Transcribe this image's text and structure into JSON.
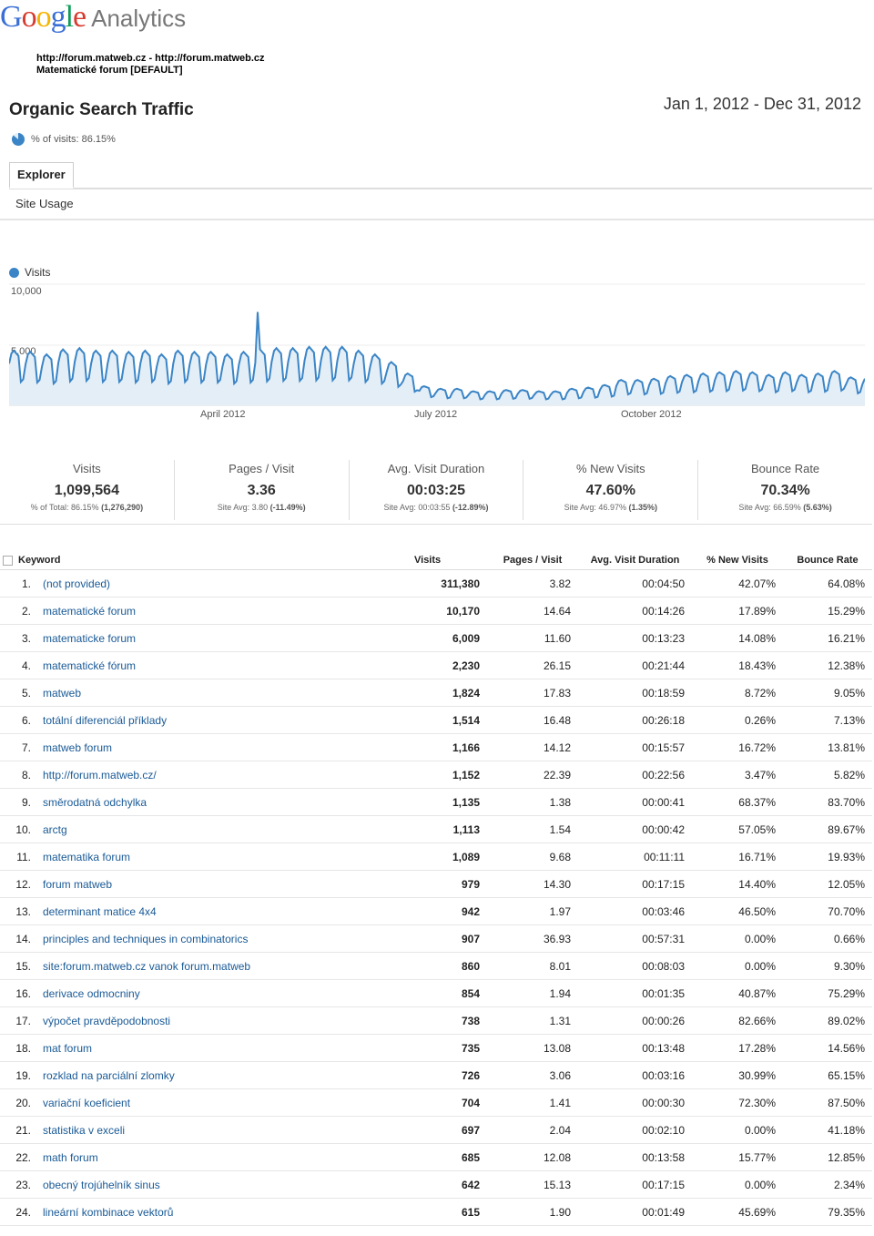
{
  "app": {
    "brand_google": "Google",
    "brand_analytics": "Analytics"
  },
  "profile": {
    "site": "http://forum.matweb.cz - http://forum.matweb.cz",
    "name": "Matematické forum [DEFAULT]"
  },
  "report": {
    "title": "Organic Search Traffic",
    "date_range": "Jan 1, 2012 - Dec 31, 2012",
    "pct_visits": "% of visits: 86.15%",
    "pct_visits_fraction": 0.8615
  },
  "tabs": {
    "explorer": "Explorer",
    "site_usage": "Site Usage"
  },
  "chart": {
    "legend": "Visits",
    "y_ticks": [
      "10,000",
      "5,000"
    ],
    "x_labels": [
      "April 2012",
      "July 2012",
      "October 2012"
    ],
    "accent": "#3b85c6",
    "fill": "#e3eef7"
  },
  "chart_data": {
    "type": "area",
    "ylim": [
      0,
      10000
    ],
    "x": [
      "2012-01-01",
      "2012-12-31"
    ],
    "series": [
      {
        "name": "Visits",
        "weekly_profile": [
          0.8,
          1.0,
          1.05,
          1.0,
          0.95,
          0.45,
          0.5
        ],
        "base_levels_by_week": [
          4300,
          4200,
          4000,
          4400,
          4500,
          4300,
          4300,
          4200,
          4300,
          4000,
          4300,
          4200,
          4200,
          4000,
          4200,
          4400,
          4500,
          4500,
          4600,
          4600,
          4600,
          4300,
          4000,
          3400,
          2500,
          1500,
          1300,
          1300,
          1100,
          1100,
          1200,
          1200,
          1100,
          1100,
          1300,
          1400,
          1600,
          2000,
          2000,
          2100,
          2300,
          2400,
          2500,
          2600,
          2700,
          2600,
          2400,
          2600,
          2400,
          2500,
          2700,
          2200
        ],
        "peak": {
          "date": "2012-04-16",
          "value": 7700
        }
      }
    ]
  },
  "metrics": [
    {
      "title": "Visits",
      "value": "1,099,564",
      "sub_label": "% of Total: 86.15%",
      "sub_value": "(1,276,290)"
    },
    {
      "title": "Pages / Visit",
      "value": "3.36",
      "sub_label": "Site Avg: 3.80",
      "sub_value": "(-11.49%)"
    },
    {
      "title": "Avg. Visit Duration",
      "value": "00:03:25",
      "sub_label": "Site Avg: 00:03:55",
      "sub_value": "(-12.89%)"
    },
    {
      "title": "% New Visits",
      "value": "47.60%",
      "sub_label": "Site Avg: 46.97%",
      "sub_value": "(1.35%)"
    },
    {
      "title": "Bounce Rate",
      "value": "70.34%",
      "sub_label": "Site Avg: 66.59%",
      "sub_value": "(5.63%)"
    }
  ],
  "table": {
    "headers": [
      "Keyword",
      "Visits",
      "Pages / Visit",
      "Avg. Visit Duration",
      "% New Visits",
      "Bounce Rate"
    ],
    "rows": [
      [
        "1.",
        "(not provided)",
        "311,380",
        "3.82",
        "00:04:50",
        "42.07%",
        "64.08%"
      ],
      [
        "2.",
        "matematické forum",
        "10,170",
        "14.64",
        "00:14:26",
        "17.89%",
        "15.29%"
      ],
      [
        "3.",
        "matematicke forum",
        "6,009",
        "11.60",
        "00:13:23",
        "14.08%",
        "16.21%"
      ],
      [
        "4.",
        "matematické fórum",
        "2,230",
        "26.15",
        "00:21:44",
        "18.43%",
        "12.38%"
      ],
      [
        "5.",
        "matweb",
        "1,824",
        "17.83",
        "00:18:59",
        "8.72%",
        "9.05%"
      ],
      [
        "6.",
        "totální diferenciál příklady",
        "1,514",
        "16.48",
        "00:26:18",
        "0.26%",
        "7.13%"
      ],
      [
        "7.",
        "matweb forum",
        "1,166",
        "14.12",
        "00:15:57",
        "16.72%",
        "13.81%"
      ],
      [
        "8.",
        "http://forum.matweb.cz/",
        "1,152",
        "22.39",
        "00:22:56",
        "3.47%",
        "5.82%"
      ],
      [
        "9.",
        "směrodatná odchylka",
        "1,135",
        "1.38",
        "00:00:41",
        "68.37%",
        "83.70%"
      ],
      [
        "10.",
        "arctg",
        "1,113",
        "1.54",
        "00:00:42",
        "57.05%",
        "89.67%"
      ],
      [
        "11.",
        "matematika forum",
        "1,089",
        "9.68",
        "00:11:11",
        "16.71%",
        "19.93%"
      ],
      [
        "12.",
        "forum matweb",
        "979",
        "14.30",
        "00:17:15",
        "14.40%",
        "12.05%"
      ],
      [
        "13.",
        "determinant matice 4x4",
        "942",
        "1.97",
        "00:03:46",
        "46.50%",
        "70.70%"
      ],
      [
        "14.",
        "principles and techniques in combinatorics",
        "907",
        "36.93",
        "00:57:31",
        "0.00%",
        "0.66%"
      ],
      [
        "15.",
        "site:forum.matweb.cz vanok forum.matweb",
        "860",
        "8.01",
        "00:08:03",
        "0.00%",
        "9.30%"
      ],
      [
        "16.",
        "derivace odmocniny",
        "854",
        "1.94",
        "00:01:35",
        "40.87%",
        "75.29%"
      ],
      [
        "17.",
        "výpočet pravděpodobnosti",
        "738",
        "1.31",
        "00:00:26",
        "82.66%",
        "89.02%"
      ],
      [
        "18.",
        "mat forum",
        "735",
        "13.08",
        "00:13:48",
        "17.28%",
        "14.56%"
      ],
      [
        "19.",
        "rozklad na parciální zlomky",
        "726",
        "3.06",
        "00:03:16",
        "30.99%",
        "65.15%"
      ],
      [
        "20.",
        "variační koeficient",
        "704",
        "1.41",
        "00:00:30",
        "72.30%",
        "87.50%"
      ],
      [
        "21.",
        "statistika v exceli",
        "697",
        "2.04",
        "00:02:10",
        "0.00%",
        "41.18%"
      ],
      [
        "22.",
        "math forum",
        "685",
        "12.08",
        "00:13:58",
        "15.77%",
        "12.85%"
      ],
      [
        "23.",
        "obecný trojúhelník sinus",
        "642",
        "15.13",
        "00:17:15",
        "0.00%",
        "2.34%"
      ],
      [
        "24.",
        "lineární kombinace vektorů",
        "615",
        "1.90",
        "00:01:49",
        "45.69%",
        "79.35%"
      ]
    ]
  }
}
